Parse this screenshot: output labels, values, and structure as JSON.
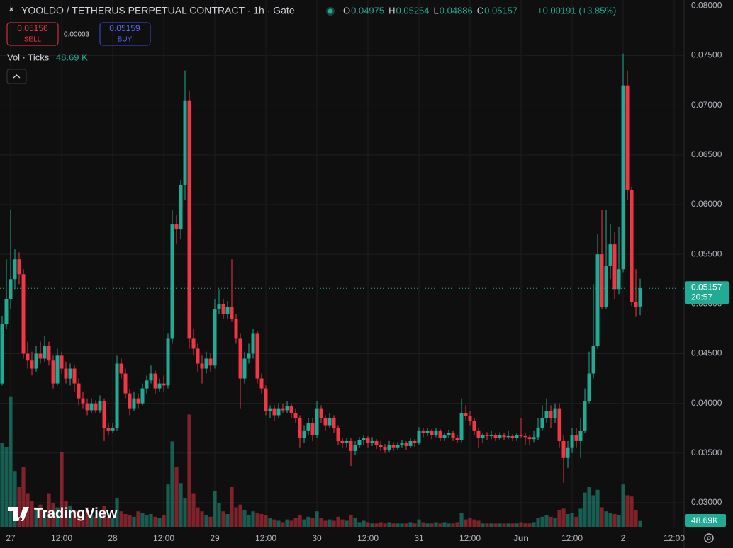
{
  "chart_data": {
    "type": "candlestick",
    "title": "YOOLDO / TETHERUS PERPETUAL CONTRACT · 1h · Gate",
    "ohlc_letters": [
      "O",
      "H",
      "L",
      "C"
    ],
    "change_label": "+0.00191 (+3.85%)",
    "sell_price": "0.05156",
    "sell_label": "SELL",
    "spread": "0.00003",
    "buy_price": "0.05159",
    "buy_label": "BUY",
    "volume_title": "Vol · Ticks",
    "volume_value_label": "48.69 K",
    "volume_tag_label": "48.69K",
    "countdown": "20:57",
    "brand": "TradingView",
    "up_color": "#22ab94",
    "down_color": "#f23645",
    "xlim": [
      -0.5,
      160.33
    ],
    "ylim": [
      0.0275,
      0.0806
    ],
    "grid": true,
    "xticks": [
      {
        "value": 2,
        "label": "27"
      },
      {
        "value": 14,
        "label": "12:00"
      },
      {
        "value": 26,
        "label": "28"
      },
      {
        "value": 38,
        "label": "12:00"
      },
      {
        "value": 50,
        "label": "29"
      },
      {
        "value": 62,
        "label": "12:00"
      },
      {
        "value": 74,
        "label": "30"
      },
      {
        "value": 86,
        "label": "12:00"
      },
      {
        "value": 98,
        "label": "31"
      },
      {
        "value": 110,
        "label": "12:00"
      },
      {
        "value": 122,
        "label": "Jun"
      },
      {
        "value": 134,
        "label": "12:00"
      },
      {
        "value": 146,
        "label": "2"
      },
      {
        "value": 158,
        "label": "12:00"
      }
    ],
    "yticks": [
      {
        "value": 0.03,
        "label": "0.03000"
      },
      {
        "value": 0.035,
        "label": "0.03500"
      },
      {
        "value": 0.04,
        "label": "0.04000"
      },
      {
        "value": 0.045,
        "label": "0.04500"
      },
      {
        "value": 0.05,
        "label": "0.05000"
      },
      {
        "value": 0.055,
        "label": "0.05500"
      },
      {
        "value": 0.06,
        "label": "0.06000"
      },
      {
        "value": 0.065,
        "label": "0.06500"
      },
      {
        "value": 0.07,
        "label": "0.07000"
      },
      {
        "value": 0.075,
        "label": "0.07500"
      },
      {
        "value": 0.08,
        "label": "0.08000"
      }
    ],
    "candles": [
      [
        0.042,
        0.0488,
        0.0418,
        0.048
      ],
      [
        0.048,
        0.0545,
        0.0475,
        0.0505
      ],
      [
        0.0505,
        0.0595,
        0.0495,
        0.0525
      ],
      [
        0.0525,
        0.0555,
        0.0515,
        0.0545
      ],
      [
        0.0545,
        0.0552,
        0.052,
        0.053
      ],
      [
        0.053,
        0.0535,
        0.0445,
        0.045
      ],
      [
        0.045,
        0.0462,
        0.0435,
        0.0443
      ],
      [
        0.0443,
        0.0452,
        0.0428,
        0.0435
      ],
      [
        0.0435,
        0.0458,
        0.0432,
        0.045
      ],
      [
        0.045,
        0.0462,
        0.044,
        0.0445
      ],
      [
        0.0445,
        0.0468,
        0.0442,
        0.0458
      ],
      [
        0.0458,
        0.0462,
        0.0438,
        0.0443
      ],
      [
        0.0443,
        0.0448,
        0.0415,
        0.042
      ],
      [
        0.042,
        0.0455,
        0.0418,
        0.0448
      ],
      [
        0.0448,
        0.0452,
        0.043,
        0.0435
      ],
      [
        0.0435,
        0.0442,
        0.042,
        0.0425
      ],
      [
        0.0425,
        0.044,
        0.0418,
        0.0435
      ],
      [
        0.0435,
        0.0438,
        0.0412,
        0.042
      ],
      [
        0.042,
        0.0425,
        0.0398,
        0.0405
      ],
      [
        0.0405,
        0.0412,
        0.0395,
        0.04
      ],
      [
        0.04,
        0.0405,
        0.0388,
        0.0393
      ],
      [
        0.0393,
        0.0405,
        0.039,
        0.04
      ],
      [
        0.04,
        0.0403,
        0.039,
        0.0393
      ],
      [
        0.0393,
        0.0408,
        0.039,
        0.0402
      ],
      [
        0.0402,
        0.0405,
        0.0362,
        0.0375
      ],
      [
        0.0375,
        0.038,
        0.0368,
        0.0372
      ],
      [
        0.0372,
        0.038,
        0.037,
        0.0375
      ],
      [
        0.0375,
        0.0448,
        0.0372,
        0.044
      ],
      [
        0.044,
        0.0445,
        0.0425,
        0.043
      ],
      [
        0.043,
        0.0435,
        0.0405,
        0.041
      ],
      [
        0.041,
        0.0415,
        0.0388,
        0.0395
      ],
      [
        0.0395,
        0.0412,
        0.0392,
        0.0405
      ],
      [
        0.0405,
        0.041,
        0.0395,
        0.04
      ],
      [
        0.04,
        0.042,
        0.0398,
        0.0415
      ],
      [
        0.0415,
        0.0428,
        0.041,
        0.0423
      ],
      [
        0.0423,
        0.0438,
        0.042,
        0.043
      ],
      [
        0.043,
        0.0433,
        0.041,
        0.0415
      ],
      [
        0.0415,
        0.0425,
        0.0412,
        0.042
      ],
      [
        0.042,
        0.0428,
        0.0412,
        0.0418
      ],
      [
        0.0418,
        0.047,
        0.0415,
        0.0465
      ],
      [
        0.0465,
        0.0595,
        0.046,
        0.058
      ],
      [
        0.058,
        0.059,
        0.056,
        0.0575
      ],
      [
        0.0575,
        0.0625,
        0.0565,
        0.062
      ],
      [
        0.062,
        0.0735,
        0.0605,
        0.0705
      ],
      [
        0.0705,
        0.0715,
        0.0455,
        0.0465
      ],
      [
        0.0465,
        0.0475,
        0.0448,
        0.0455
      ],
      [
        0.0455,
        0.046,
        0.0432,
        0.044
      ],
      [
        0.044,
        0.0448,
        0.042,
        0.0435
      ],
      [
        0.0435,
        0.0452,
        0.043,
        0.0445
      ],
      [
        0.0445,
        0.045,
        0.0432,
        0.0438
      ],
      [
        0.0438,
        0.0505,
        0.0435,
        0.0495
      ],
      [
        0.0495,
        0.0515,
        0.049,
        0.05
      ],
      [
        0.05,
        0.0505,
        0.0485,
        0.049
      ],
      [
        0.049,
        0.0503,
        0.0485,
        0.0497
      ],
      [
        0.0497,
        0.0545,
        0.0482,
        0.0485
      ],
      [
        0.0485,
        0.049,
        0.046,
        0.0465
      ],
      [
        0.0465,
        0.047,
        0.0395,
        0.0425
      ],
      [
        0.0425,
        0.0452,
        0.042,
        0.0445
      ],
      [
        0.0445,
        0.046,
        0.044,
        0.045
      ],
      [
        0.045,
        0.0475,
        0.0445,
        0.047
      ],
      [
        0.047,
        0.0473,
        0.042,
        0.0425
      ],
      [
        0.0425,
        0.043,
        0.041,
        0.0415
      ],
      [
        0.0415,
        0.0418,
        0.0388,
        0.0392
      ],
      [
        0.0392,
        0.0398,
        0.0385,
        0.0395
      ],
      [
        0.0395,
        0.0398,
        0.0382,
        0.0388
      ],
      [
        0.0388,
        0.04,
        0.0385,
        0.0395
      ],
      [
        0.0395,
        0.04,
        0.039,
        0.0393
      ],
      [
        0.0393,
        0.0402,
        0.039,
        0.0397
      ],
      [
        0.0397,
        0.04,
        0.0385,
        0.039
      ],
      [
        0.039,
        0.0395,
        0.038,
        0.0385
      ],
      [
        0.0385,
        0.0388,
        0.0355,
        0.0365
      ],
      [
        0.0365,
        0.0378,
        0.036,
        0.0372
      ],
      [
        0.0372,
        0.0385,
        0.0368,
        0.038
      ],
      [
        0.038,
        0.0385,
        0.0362,
        0.0368
      ],
      [
        0.0368,
        0.0402,
        0.0365,
        0.0395
      ],
      [
        0.0395,
        0.0398,
        0.038,
        0.0385
      ],
      [
        0.0385,
        0.0388,
        0.0372,
        0.0378
      ],
      [
        0.0378,
        0.039,
        0.0375,
        0.0385
      ],
      [
        0.0385,
        0.0388,
        0.037,
        0.0375
      ],
      [
        0.0375,
        0.0378,
        0.0358,
        0.0362
      ],
      [
        0.0362,
        0.0365,
        0.0355,
        0.036
      ],
      [
        0.036,
        0.0365,
        0.0355,
        0.0362
      ],
      [
        0.0362,
        0.0365,
        0.0337,
        0.0352
      ],
      [
        0.0352,
        0.0362,
        0.0348,
        0.0358
      ],
      [
        0.0358,
        0.0366,
        0.0355,
        0.0363
      ],
      [
        0.0363,
        0.0368,
        0.0358,
        0.0365
      ],
      [
        0.0365,
        0.0367,
        0.0355,
        0.036
      ],
      [
        0.036,
        0.0366,
        0.0357,
        0.0362
      ],
      [
        0.0362,
        0.0364,
        0.0354,
        0.0358
      ],
      [
        0.0358,
        0.0362,
        0.0352,
        0.0356
      ],
      [
        0.0356,
        0.0359,
        0.035,
        0.0353
      ],
      [
        0.0353,
        0.0362,
        0.0351,
        0.0358
      ],
      [
        0.0358,
        0.0361,
        0.0352,
        0.0355
      ],
      [
        0.0355,
        0.0361,
        0.0353,
        0.0358
      ],
      [
        0.0358,
        0.0363,
        0.0355,
        0.036
      ],
      [
        0.036,
        0.0362,
        0.0353,
        0.0357
      ],
      [
        0.0357,
        0.0365,
        0.0355,
        0.0362
      ],
      [
        0.0362,
        0.0364,
        0.0356,
        0.036
      ],
      [
        0.036,
        0.0376,
        0.0358,
        0.0372
      ],
      [
        0.0372,
        0.0375,
        0.0366,
        0.037
      ],
      [
        0.037,
        0.0375,
        0.0367,
        0.0372
      ],
      [
        0.0372,
        0.0374,
        0.0364,
        0.0368
      ],
      [
        0.0368,
        0.0375,
        0.0366,
        0.0372
      ],
      [
        0.0372,
        0.0374,
        0.0362,
        0.0365
      ],
      [
        0.0365,
        0.037,
        0.0362,
        0.0368
      ],
      [
        0.0368,
        0.0373,
        0.0365,
        0.037
      ],
      [
        0.037,
        0.0372,
        0.0362,
        0.0365
      ],
      [
        0.0365,
        0.0368,
        0.036,
        0.0363
      ],
      [
        0.0363,
        0.0405,
        0.0361,
        0.039
      ],
      [
        0.039,
        0.0398,
        0.0383,
        0.0387
      ],
      [
        0.0387,
        0.0392,
        0.0378,
        0.0382
      ],
      [
        0.0382,
        0.0385,
        0.0368,
        0.0372
      ],
      [
        0.0372,
        0.0375,
        0.0355,
        0.0365
      ],
      [
        0.0365,
        0.037,
        0.036,
        0.0368
      ],
      [
        0.0368,
        0.0371,
        0.0363,
        0.0367
      ],
      [
        0.0367,
        0.0372,
        0.0364,
        0.0368
      ],
      [
        0.0368,
        0.037,
        0.0362,
        0.0365
      ],
      [
        0.0365,
        0.0371,
        0.0363,
        0.0368
      ],
      [
        0.0368,
        0.037,
        0.0363,
        0.0366
      ],
      [
        0.0366,
        0.0372,
        0.0364,
        0.0367
      ],
      [
        0.0367,
        0.0369,
        0.0362,
        0.0365
      ],
      [
        0.0365,
        0.037,
        0.0362,
        0.0368
      ],
      [
        0.0368,
        0.0385,
        0.0365,
        0.0367
      ],
      [
        0.0367,
        0.037,
        0.0358,
        0.0366
      ],
      [
        0.0366,
        0.0368,
        0.0358,
        0.0364
      ],
      [
        0.0364,
        0.0372,
        0.0361,
        0.0366
      ],
      [
        0.0366,
        0.0385,
        0.0363,
        0.0375
      ],
      [
        0.0375,
        0.0398,
        0.0372,
        0.0385
      ],
      [
        0.0385,
        0.0405,
        0.038,
        0.0392
      ],
      [
        0.0392,
        0.0398,
        0.0375,
        0.0385
      ],
      [
        0.0385,
        0.04,
        0.038,
        0.0395
      ],
      [
        0.0395,
        0.04,
        0.0355,
        0.0362
      ],
      [
        0.0362,
        0.0368,
        0.032,
        0.0345
      ],
      [
        0.0345,
        0.0362,
        0.0335,
        0.0355
      ],
      [
        0.0355,
        0.0375,
        0.035,
        0.0368
      ],
      [
        0.0368,
        0.0375,
        0.0355,
        0.0362
      ],
      [
        0.0362,
        0.0385,
        0.0345,
        0.0372
      ],
      [
        0.0372,
        0.0415,
        0.037,
        0.0402
      ],
      [
        0.0402,
        0.0452,
        0.04,
        0.043
      ],
      [
        0.043,
        0.052,
        0.0425,
        0.0458
      ],
      [
        0.0458,
        0.057,
        0.0455,
        0.055
      ],
      [
        0.055,
        0.0595,
        0.0495,
        0.0497
      ],
      [
        0.0497,
        0.0595,
        0.0495,
        0.0538
      ],
      [
        0.0538,
        0.058,
        0.0525,
        0.056
      ],
      [
        0.056,
        0.0573,
        0.0505,
        0.0515
      ],
      [
        0.0515,
        0.0578,
        0.051,
        0.0535
      ],
      [
        0.0535,
        0.0752,
        0.0532,
        0.072
      ],
      [
        0.072,
        0.0735,
        0.0605,
        0.0615
      ],
      [
        0.0615,
        0.0618,
        0.0498,
        0.0502
      ],
      [
        0.0502,
        0.0535,
        0.0487,
        0.04966
      ],
      [
        0.04975,
        0.05254,
        0.04886,
        0.05157
      ]
    ],
    "volume": [
      630,
      600,
      970,
      420,
      300,
      450,
      250,
      200,
      150,
      170,
      120,
      250,
      180,
      150,
      560,
      200,
      160,
      130,
      120,
      100,
      150,
      90,
      80,
      110,
      160,
      80,
      70,
      220,
      120,
      100,
      90,
      80,
      120,
      110,
      90,
      100,
      80,
      70,
      90,
      320,
      640,
      450,
      330,
      220,
      840,
      250,
      150,
      120,
      90,
      80,
      270,
      180,
      120,
      100,
      300,
      150,
      170,
      130,
      90,
      120,
      110,
      100,
      90,
      70,
      60,
      50,
      40,
      60,
      50,
      70,
      90,
      60,
      80,
      70,
      120,
      70,
      50,
      60,
      50,
      80,
      60,
      50,
      90,
      70,
      40,
      50,
      40,
      30,
      30,
      40,
      30,
      40,
      30,
      30,
      30,
      30,
      40,
      30,
      60,
      40,
      30,
      30,
      40,
      30,
      40,
      30,
      30,
      40,
      110,
      60,
      70,
      60,
      50,
      30,
      30,
      30,
      30,
      30,
      30,
      30,
      30,
      30,
      40,
      30,
      30,
      40,
      70,
      80,
      90,
      80,
      70,
      130,
      140,
      100,
      110,
      80,
      140,
      260,
      300,
      240,
      280,
      150,
      120,
      110,
      100,
      90,
      320,
      240,
      230,
      130,
      48.69
    ]
  }
}
